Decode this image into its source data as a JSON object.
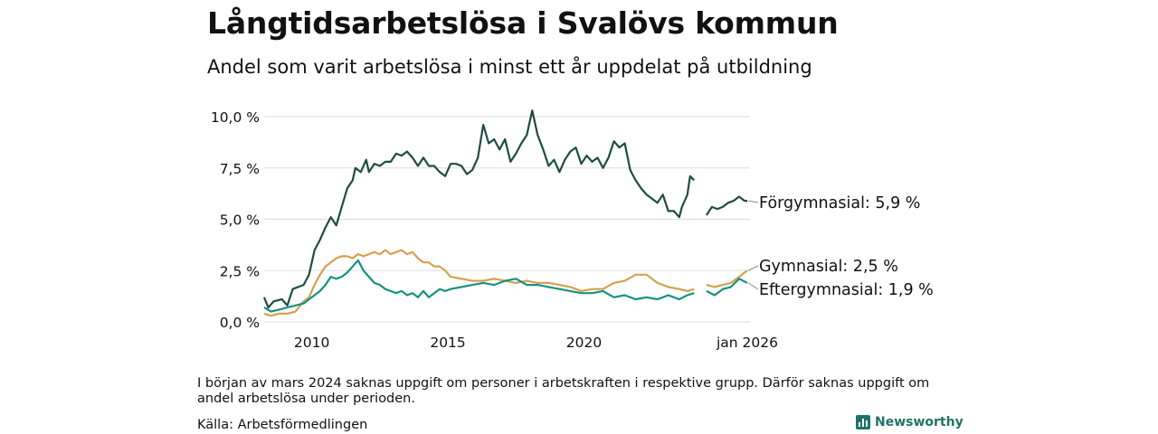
{
  "title": "Långtidsarbetslösa i Svalövs kommun",
  "subtitle": "Andel som varit arbetslösa i minst ett år uppdelat på utbildning",
  "note": "I början av mars 2024 saknas uppgift om personer i arbetskraften i respektive grupp. Därför saknas uppgift om andel arbetslösa under perioden.",
  "source": "Källa: Arbetsförmedlingen",
  "brand": "Newsworthy",
  "chart_data": {
    "type": "line",
    "title": "Långtidsarbetslösa i Svalövs kommun",
    "ylabel": "",
    "xlabel": "",
    "xlim": [
      2008.25,
      2026.1
    ],
    "ylim": [
      0,
      10
    ],
    "y_ticks": [
      {
        "value": 0,
        "label": "0,0 %"
      },
      {
        "value": 2.5,
        "label": "2,5 %"
      },
      {
        "value": 5,
        "label": "5,0 %"
      },
      {
        "value": 7.5,
        "label": "7,5 %"
      },
      {
        "value": 10,
        "label": "10,0 %"
      }
    ],
    "x_ticks": [
      {
        "value": 2010,
        "label": "2010"
      },
      {
        "value": 2015,
        "label": "2015"
      },
      {
        "value": 2020,
        "label": "2020"
      },
      {
        "value": 2026.0,
        "label": "jan 2026"
      }
    ],
    "gap": [
      2024.1,
      2024.5
    ],
    "series": [
      {
        "name": "Förgymnasial",
        "label": "Förgymnasial: 5,9 %",
        "color": "#1f4d40",
        "points": [
          [
            2008.25,
            1.2
          ],
          [
            2008.4,
            0.7
          ],
          [
            2008.6,
            1.0
          ],
          [
            2008.9,
            1.1
          ],
          [
            2009.1,
            0.8
          ],
          [
            2009.3,
            1.6
          ],
          [
            2009.5,
            1.7
          ],
          [
            2009.7,
            1.8
          ],
          [
            2009.9,
            2.3
          ],
          [
            2010.1,
            3.5
          ],
          [
            2010.3,
            4.0
          ],
          [
            2010.5,
            4.6
          ],
          [
            2010.7,
            5.1
          ],
          [
            2010.9,
            4.7
          ],
          [
            2011.1,
            5.6
          ],
          [
            2011.3,
            6.5
          ],
          [
            2011.5,
            6.9
          ],
          [
            2011.6,
            7.5
          ],
          [
            2011.8,
            7.3
          ],
          [
            2012.0,
            7.9
          ],
          [
            2012.1,
            7.3
          ],
          [
            2012.3,
            7.7
          ],
          [
            2012.5,
            7.6
          ],
          [
            2012.7,
            7.8
          ],
          [
            2012.9,
            7.8
          ],
          [
            2013.1,
            8.2
          ],
          [
            2013.3,
            8.1
          ],
          [
            2013.5,
            8.3
          ],
          [
            2013.7,
            8.0
          ],
          [
            2013.9,
            7.6
          ],
          [
            2014.1,
            8.0
          ],
          [
            2014.3,
            7.6
          ],
          [
            2014.5,
            7.6
          ],
          [
            2014.7,
            7.3
          ],
          [
            2014.9,
            7.1
          ],
          [
            2015.1,
            7.7
          ],
          [
            2015.3,
            7.7
          ],
          [
            2015.5,
            7.6
          ],
          [
            2015.7,
            7.2
          ],
          [
            2015.9,
            7.4
          ],
          [
            2016.1,
            8.0
          ],
          [
            2016.3,
            9.6
          ],
          [
            2016.5,
            8.7
          ],
          [
            2016.7,
            8.9
          ],
          [
            2016.9,
            8.4
          ],
          [
            2017.1,
            8.9
          ],
          [
            2017.3,
            7.8
          ],
          [
            2017.5,
            8.2
          ],
          [
            2017.7,
            8.7
          ],
          [
            2017.9,
            9.1
          ],
          [
            2018.1,
            10.3
          ],
          [
            2018.3,
            9.1
          ],
          [
            2018.5,
            8.4
          ],
          [
            2018.7,
            7.6
          ],
          [
            2018.9,
            7.9
          ],
          [
            2019.1,
            7.3
          ],
          [
            2019.3,
            7.9
          ],
          [
            2019.5,
            8.3
          ],
          [
            2019.7,
            8.5
          ],
          [
            2019.9,
            7.7
          ],
          [
            2020.1,
            8.1
          ],
          [
            2020.3,
            7.8
          ],
          [
            2020.5,
            8.0
          ],
          [
            2020.7,
            7.5
          ],
          [
            2020.9,
            8.0
          ],
          [
            2021.1,
            8.8
          ],
          [
            2021.3,
            8.5
          ],
          [
            2021.5,
            8.7
          ],
          [
            2021.7,
            7.4
          ],
          [
            2021.9,
            6.9
          ],
          [
            2022.1,
            6.5
          ],
          [
            2022.3,
            6.2
          ],
          [
            2022.5,
            6.0
          ],
          [
            2022.7,
            5.8
          ],
          [
            2022.9,
            6.2
          ],
          [
            2023.1,
            5.4
          ],
          [
            2023.3,
            5.4
          ],
          [
            2023.5,
            5.1
          ],
          [
            2023.6,
            5.6
          ],
          [
            2023.8,
            6.2
          ],
          [
            2023.9,
            7.1
          ],
          [
            2024.05,
            6.9
          ],
          [
            2024.5,
            5.2
          ],
          [
            2024.7,
            5.6
          ],
          [
            2024.9,
            5.5
          ],
          [
            2025.1,
            5.6
          ],
          [
            2025.3,
            5.8
          ],
          [
            2025.5,
            5.9
          ],
          [
            2025.7,
            6.1
          ],
          [
            2025.9,
            5.9
          ],
          [
            2026.0,
            5.9
          ]
        ]
      },
      {
        "name": "Gymnasial",
        "label": "Gymnasial: 2,5 %",
        "color": "#d4a04f",
        "points": [
          [
            2008.25,
            0.4
          ],
          [
            2008.5,
            0.3
          ],
          [
            2008.8,
            0.4
          ],
          [
            2009.1,
            0.4
          ],
          [
            2009.4,
            0.5
          ],
          [
            2009.7,
            1.0
          ],
          [
            2009.9,
            1.2
          ],
          [
            2010.1,
            1.8
          ],
          [
            2010.3,
            2.3
          ],
          [
            2010.5,
            2.7
          ],
          [
            2010.7,
            2.9
          ],
          [
            2010.9,
            3.1
          ],
          [
            2011.1,
            3.2
          ],
          [
            2011.3,
            3.2
          ],
          [
            2011.5,
            3.1
          ],
          [
            2011.7,
            3.3
          ],
          [
            2011.9,
            3.2
          ],
          [
            2012.1,
            3.3
          ],
          [
            2012.3,
            3.4
          ],
          [
            2012.5,
            3.3
          ],
          [
            2012.7,
            3.5
          ],
          [
            2012.9,
            3.3
          ],
          [
            2013.1,
            3.4
          ],
          [
            2013.3,
            3.5
          ],
          [
            2013.5,
            3.3
          ],
          [
            2013.7,
            3.4
          ],
          [
            2013.9,
            3.1
          ],
          [
            2014.1,
            2.9
          ],
          [
            2014.3,
            2.9
          ],
          [
            2014.5,
            2.7
          ],
          [
            2014.7,
            2.7
          ],
          [
            2014.9,
            2.5
          ],
          [
            2015.1,
            2.2
          ],
          [
            2015.5,
            2.1
          ],
          [
            2015.9,
            2.0
          ],
          [
            2016.3,
            2.0
          ],
          [
            2016.7,
            2.1
          ],
          [
            2017.1,
            2.0
          ],
          [
            2017.5,
            1.9
          ],
          [
            2017.9,
            2.0
          ],
          [
            2018.3,
            1.9
          ],
          [
            2018.7,
            1.9
          ],
          [
            2019.1,
            1.8
          ],
          [
            2019.5,
            1.7
          ],
          [
            2019.9,
            1.5
          ],
          [
            2020.3,
            1.6
          ],
          [
            2020.7,
            1.6
          ],
          [
            2021.1,
            1.9
          ],
          [
            2021.5,
            2.0
          ],
          [
            2021.9,
            2.3
          ],
          [
            2022.3,
            2.3
          ],
          [
            2022.7,
            1.9
          ],
          [
            2023.1,
            1.7
          ],
          [
            2023.5,
            1.6
          ],
          [
            2023.8,
            1.5
          ],
          [
            2024.05,
            1.6
          ],
          [
            2024.5,
            1.8
          ],
          [
            2024.8,
            1.7
          ],
          [
            2025.1,
            1.8
          ],
          [
            2025.4,
            1.9
          ],
          [
            2025.7,
            2.2
          ],
          [
            2026.0,
            2.5
          ]
        ]
      },
      {
        "name": "Eftergymnasial",
        "label": "Eftergymnasial: 1,9 %",
        "color": "#17917f",
        "points": [
          [
            2008.25,
            0.7
          ],
          [
            2008.5,
            0.5
          ],
          [
            2008.8,
            0.6
          ],
          [
            2009.1,
            0.7
          ],
          [
            2009.4,
            0.8
          ],
          [
            2009.7,
            0.9
          ],
          [
            2009.9,
            1.1
          ],
          [
            2010.1,
            1.3
          ],
          [
            2010.3,
            1.5
          ],
          [
            2010.5,
            1.8
          ],
          [
            2010.7,
            2.2
          ],
          [
            2010.9,
            2.1
          ],
          [
            2011.1,
            2.2
          ],
          [
            2011.3,
            2.4
          ],
          [
            2011.5,
            2.7
          ],
          [
            2011.7,
            3.0
          ],
          [
            2011.9,
            2.5
          ],
          [
            2012.1,
            2.2
          ],
          [
            2012.3,
            1.9
          ],
          [
            2012.5,
            1.8
          ],
          [
            2012.7,
            1.6
          ],
          [
            2012.9,
            1.5
          ],
          [
            2013.1,
            1.4
          ],
          [
            2013.3,
            1.5
          ],
          [
            2013.5,
            1.3
          ],
          [
            2013.7,
            1.4
          ],
          [
            2013.9,
            1.2
          ],
          [
            2014.1,
            1.5
          ],
          [
            2014.3,
            1.2
          ],
          [
            2014.5,
            1.4
          ],
          [
            2014.7,
            1.6
          ],
          [
            2014.9,
            1.5
          ],
          [
            2015.1,
            1.6
          ],
          [
            2015.5,
            1.7
          ],
          [
            2015.9,
            1.8
          ],
          [
            2016.3,
            1.9
          ],
          [
            2016.7,
            1.8
          ],
          [
            2017.1,
            2.0
          ],
          [
            2017.5,
            2.1
          ],
          [
            2017.9,
            1.8
          ],
          [
            2018.3,
            1.8
          ],
          [
            2018.7,
            1.7
          ],
          [
            2019.1,
            1.6
          ],
          [
            2019.5,
            1.5
          ],
          [
            2019.9,
            1.4
          ],
          [
            2020.3,
            1.4
          ],
          [
            2020.7,
            1.5
          ],
          [
            2021.1,
            1.2
          ],
          [
            2021.5,
            1.3
          ],
          [
            2021.9,
            1.1
          ],
          [
            2022.3,
            1.2
          ],
          [
            2022.7,
            1.1
          ],
          [
            2023.1,
            1.3
          ],
          [
            2023.5,
            1.1
          ],
          [
            2023.8,
            1.3
          ],
          [
            2024.05,
            1.4
          ],
          [
            2024.5,
            1.5
          ],
          [
            2024.8,
            1.3
          ],
          [
            2025.1,
            1.6
          ],
          [
            2025.4,
            1.7
          ],
          [
            2025.7,
            2.1
          ],
          [
            2026.0,
            1.9
          ]
        ]
      }
    ]
  }
}
